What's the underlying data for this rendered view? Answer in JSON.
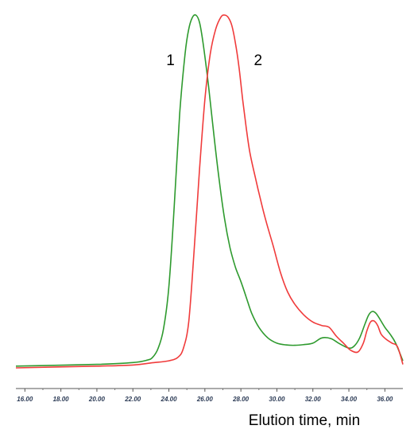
{
  "chart_data": {
    "type": "line",
    "title": "",
    "xlabel": "Elution time, min",
    "ylabel": "",
    "xlim": [
      15.5,
      37.0
    ],
    "ylim": [
      0,
      100
    ],
    "xticks": [
      "16.00",
      "18.00",
      "20.00",
      "22.00",
      "24.00",
      "26.00",
      "28.00",
      "30.00",
      "32.00",
      "34.00",
      "36.00"
    ],
    "grid": false,
    "series": [
      {
        "name": "1",
        "color": "#2e9a2e",
        "x": [
          15.5,
          20.0,
          22.0,
          22.8,
          23.1,
          23.4,
          23.7,
          24.0,
          24.3,
          24.6,
          24.9,
          25.1,
          25.3,
          25.5,
          25.7,
          25.9,
          26.2,
          26.5,
          26.8,
          27.1,
          27.4,
          27.7,
          28.0,
          28.3,
          28.6,
          29.0,
          29.5,
          30.0,
          30.5,
          31.0,
          31.5,
          32.0,
          32.5,
          33.0,
          33.5,
          34.0,
          34.3,
          34.6,
          34.9,
          35.1,
          35.3,
          35.5,
          35.7,
          36.0,
          36.3,
          36.6,
          37.0
        ],
        "y": [
          0.5,
          1.0,
          1.5,
          2.2,
          3.0,
          5.5,
          11.0,
          23.0,
          46.0,
          72.0,
          89.0,
          96.0,
          99.3,
          100.0,
          98.0,
          92.0,
          80.0,
          66.0,
          53.0,
          42.0,
          34.0,
          28.5,
          24.5,
          20.0,
          15.5,
          11.5,
          8.5,
          7.0,
          6.5,
          6.4,
          6.6,
          7.0,
          8.5,
          8.3,
          6.8,
          5.6,
          6.2,
          8.5,
          12.5,
          15.0,
          16.0,
          15.5,
          14.0,
          11.5,
          9.5,
          7.0,
          2.0
        ]
      },
      {
        "name": "2",
        "color": "#f03b3b",
        "x": [
          15.5,
          20.0,
          22.0,
          23.0,
          24.0,
          24.5,
          24.8,
          25.1,
          25.4,
          25.7,
          26.0,
          26.3,
          26.6,
          26.9,
          27.1,
          27.3,
          27.5,
          27.7,
          27.9,
          28.1,
          28.3,
          28.5,
          28.8,
          29.1,
          29.4,
          29.8,
          30.2,
          30.6,
          31.0,
          31.5,
          32.0,
          32.5,
          32.9,
          33.3,
          33.7,
          34.1,
          34.5,
          34.8,
          35.0,
          35.2,
          35.4,
          35.6,
          35.8,
          36.1,
          36.4,
          36.7,
          37.0
        ],
        "y": [
          0.0,
          0.5,
          0.8,
          1.4,
          2.0,
          3.0,
          5.5,
          13.0,
          33.0,
          56.0,
          76.0,
          89.0,
          96.0,
          99.5,
          100.0,
          99.3,
          97.0,
          92.0,
          85.0,
          76.0,
          68.0,
          61.0,
          54.0,
          47.5,
          41.5,
          34.5,
          27.0,
          21.5,
          18.0,
          15.0,
          13.0,
          12.0,
          11.5,
          9.0,
          7.0,
          5.0,
          4.5,
          7.0,
          10.5,
          13.0,
          13.3,
          12.0,
          9.5,
          8.0,
          7.0,
          6.0,
          1.0
        ]
      }
    ]
  }
}
